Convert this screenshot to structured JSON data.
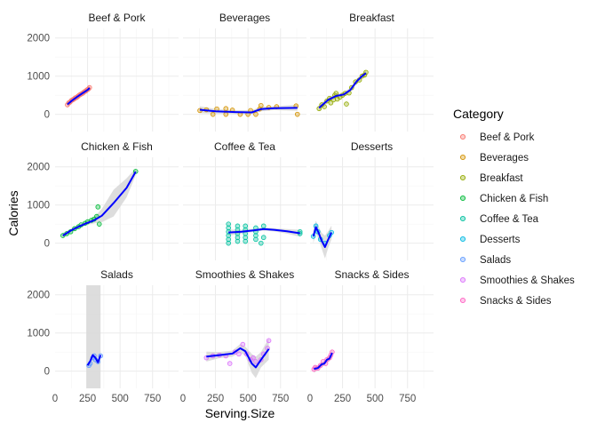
{
  "chart_data": {
    "type": "scatter",
    "xlabel": "Serving.Size",
    "ylabel": "Calories",
    "xlim": [
      0,
      950
    ],
    "ylim": [
      -450,
      2250
    ],
    "x_ticks": [
      0,
      250,
      500,
      750
    ],
    "y_ticks": [
      0,
      1000,
      2000
    ],
    "grid": true,
    "legend_position": "right",
    "legend": {
      "title": "Category",
      "entries": [
        {
          "name": "Beef & Pork",
          "color": "#F8766D"
        },
        {
          "name": "Beverages",
          "color": "#D39200"
        },
        {
          "name": "Breakfast",
          "color": "#93AA00"
        },
        {
          "name": "Chicken & Fish",
          "color": "#00BA38"
        },
        {
          "name": "Coffee & Tea",
          "color": "#00C19F"
        },
        {
          "name": "Desserts",
          "color": "#00B9E3"
        },
        {
          "name": "Salads",
          "color": "#619CFF"
        },
        {
          "name": "Smoothies & Shakes",
          "color": "#DB72FB"
        },
        {
          "name": "Snacks & Sides",
          "color": "#FF61C3"
        }
      ]
    },
    "smooth_color": "#0000FF",
    "ribbon_color": "#D9D9D9",
    "panels": [
      {
        "title": "Beef & Pork",
        "color": "#F8766D",
        "points": [
          [
            95,
            250
          ],
          [
            105,
            300
          ],
          [
            115,
            320
          ],
          [
            125,
            360
          ],
          [
            135,
            380
          ],
          [
            145,
            400
          ],
          [
            155,
            430
          ],
          [
            165,
            440
          ],
          [
            175,
            470
          ],
          [
            185,
            500
          ],
          [
            195,
            520
          ],
          [
            205,
            540
          ],
          [
            215,
            560
          ],
          [
            225,
            590
          ],
          [
            235,
            610
          ],
          [
            245,
            640
          ],
          [
            255,
            660
          ],
          [
            265,
            700
          ]
        ],
        "smooth": [
          [
            95,
            260
          ],
          [
            130,
            360
          ],
          [
            170,
            460
          ],
          [
            210,
            550
          ],
          [
            250,
            640
          ],
          [
            265,
            690
          ]
        ],
        "ribbon": [
          [
            95,
            200,
            320
          ],
          [
            130,
            320,
            400
          ],
          [
            170,
            430,
            490
          ],
          [
            210,
            520,
            580
          ],
          [
            250,
            600,
            680
          ],
          [
            265,
            630,
            750
          ]
        ]
      },
      {
        "title": "Beverages",
        "color": "#D39200",
        "points": [
          [
            130,
            100
          ],
          [
            180,
            120
          ],
          [
            230,
            0
          ],
          [
            260,
            140
          ],
          [
            330,
            150
          ],
          [
            330,
            0
          ],
          [
            380,
            110
          ],
          [
            440,
            0
          ],
          [
            500,
            0
          ],
          [
            520,
            100
          ],
          [
            560,
            0
          ],
          [
            590,
            140
          ],
          [
            600,
            230
          ],
          [
            660,
            180
          ],
          [
            720,
            200
          ],
          [
            870,
            220
          ],
          [
            880,
            0
          ]
        ],
        "smooth": [
          [
            130,
            120
          ],
          [
            250,
            80
          ],
          [
            400,
            60
          ],
          [
            530,
            50
          ],
          [
            600,
            140
          ],
          [
            700,
            160
          ],
          [
            880,
            170
          ]
        ],
        "ribbon": [
          [
            130,
            30,
            210
          ],
          [
            250,
            20,
            140
          ],
          [
            400,
            10,
            110
          ],
          [
            530,
            0,
            110
          ],
          [
            600,
            80,
            200
          ],
          [
            700,
            110,
            210
          ],
          [
            880,
            90,
            250
          ]
        ]
      },
      {
        "title": "Breakfast",
        "color": "#93AA00",
        "points": [
          [
            70,
            150
          ],
          [
            90,
            250
          ],
          [
            110,
            200
          ],
          [
            130,
            350
          ],
          [
            150,
            420
          ],
          [
            160,
            300
          ],
          [
            180,
            380
          ],
          [
            190,
            500
          ],
          [
            200,
            550
          ],
          [
            210,
            400
          ],
          [
            230,
            450
          ],
          [
            250,
            500
          ],
          [
            270,
            550
          ],
          [
            280,
            270
          ],
          [
            300,
            560
          ],
          [
            320,
            700
          ],
          [
            350,
            850
          ],
          [
            380,
            900
          ],
          [
            400,
            1000
          ],
          [
            420,
            1030
          ],
          [
            430,
            1100
          ]
        ],
        "smooth": [
          [
            70,
            170
          ],
          [
            140,
            380
          ],
          [
            200,
            480
          ],
          [
            260,
            520
          ],
          [
            310,
            640
          ],
          [
            360,
            870
          ],
          [
            400,
            1000
          ],
          [
            430,
            1080
          ]
        ],
        "ribbon": [
          [
            70,
            80,
            260
          ],
          [
            140,
            320,
            440
          ],
          [
            200,
            420,
            540
          ],
          [
            260,
            460,
            580
          ],
          [
            310,
            580,
            700
          ],
          [
            360,
            800,
            940
          ],
          [
            400,
            940,
            1060
          ],
          [
            430,
            990,
            1170
          ]
        ]
      },
      {
        "title": "Chicken & Fish",
        "color": "#00BA38",
        "points": [
          [
            60,
            200
          ],
          [
            90,
            250
          ],
          [
            120,
            300
          ],
          [
            150,
            380
          ],
          [
            180,
            430
          ],
          [
            200,
            480
          ],
          [
            230,
            520
          ],
          [
            250,
            560
          ],
          [
            280,
            600
          ],
          [
            300,
            630
          ],
          [
            320,
            700
          ],
          [
            330,
            950
          ],
          [
            340,
            500
          ],
          [
            620,
            1880
          ]
        ],
        "smooth": [
          [
            60,
            200
          ],
          [
            120,
            330
          ],
          [
            180,
            430
          ],
          [
            240,
            520
          ],
          [
            300,
            600
          ],
          [
            360,
            720
          ],
          [
            450,
            1050
          ],
          [
            550,
            1450
          ],
          [
            620,
            1870
          ]
        ],
        "ribbon": [
          [
            60,
            130,
            270
          ],
          [
            120,
            280,
            380
          ],
          [
            180,
            390,
            470
          ],
          [
            240,
            480,
            570
          ],
          [
            300,
            520,
            680
          ],
          [
            360,
            550,
            900
          ],
          [
            450,
            700,
            1400
          ],
          [
            550,
            1200,
            1700
          ],
          [
            620,
            1780,
            1960
          ]
        ]
      },
      {
        "title": "Coffee & Tea",
        "color": "#00C19F",
        "points": [
          [
            350,
            0
          ],
          [
            350,
            100
          ],
          [
            350,
            200
          ],
          [
            350,
            300
          ],
          [
            350,
            400
          ],
          [
            350,
            500
          ],
          [
            420,
            50
          ],
          [
            420,
            150
          ],
          [
            420,
            250
          ],
          [
            420,
            350
          ],
          [
            420,
            450
          ],
          [
            480,
            50
          ],
          [
            480,
            150
          ],
          [
            480,
            250
          ],
          [
            480,
            350
          ],
          [
            480,
            450
          ],
          [
            560,
            100
          ],
          [
            560,
            200
          ],
          [
            560,
            300
          ],
          [
            560,
            400
          ],
          [
            600,
            0
          ],
          [
            620,
            150
          ],
          [
            620,
            450
          ],
          [
            900,
            250
          ],
          [
            900,
            300
          ]
        ],
        "smooth": [
          [
            350,
            280
          ],
          [
            450,
            300
          ],
          [
            550,
            340
          ],
          [
            620,
            370
          ],
          [
            700,
            350
          ],
          [
            800,
            310
          ],
          [
            900,
            260
          ]
        ],
        "ribbon": [
          [
            350,
            200,
            360
          ],
          [
            450,
            250,
            350
          ],
          [
            550,
            300,
            380
          ],
          [
            620,
            330,
            410
          ],
          [
            700,
            310,
            390
          ],
          [
            800,
            250,
            370
          ],
          [
            900,
            170,
            350
          ]
        ]
      },
      {
        "title": "Desserts",
        "color": "#00B9E3",
        "points": [
          [
            25,
            180
          ],
          [
            45,
            450
          ],
          [
            60,
            300
          ],
          [
            80,
            100
          ],
          [
            115,
            0
          ],
          [
            150,
            200
          ],
          [
            165,
            280
          ]
        ],
        "smooth": [
          [
            25,
            180
          ],
          [
            45,
            420
          ],
          [
            65,
            280
          ],
          [
            90,
            60
          ],
          [
            115,
            -100
          ],
          [
            140,
            100
          ],
          [
            165,
            280
          ]
        ],
        "ribbon": [
          [
            25,
            0,
            360
          ],
          [
            45,
            250,
            590
          ],
          [
            65,
            120,
            440
          ],
          [
            90,
            -150,
            270
          ],
          [
            115,
            -400,
            200
          ],
          [
            140,
            -120,
            320
          ],
          [
            165,
            100,
            460
          ]
        ]
      },
      {
        "title": "Salads",
        "color": "#619CFF",
        "points": [
          [
            260,
            150
          ],
          [
            270,
            200
          ],
          [
            290,
            350
          ],
          [
            300,
            400
          ],
          [
            310,
            300
          ],
          [
            330,
            250
          ],
          [
            350,
            400
          ]
        ],
        "smooth": [
          [
            250,
            150
          ],
          [
            270,
            260
          ],
          [
            290,
            420
          ],
          [
            310,
            350
          ],
          [
            330,
            230
          ],
          [
            350,
            420
          ]
        ],
        "ribbon": [
          [
            240,
            -900,
            2500
          ],
          [
            350,
            -900,
            2500
          ]
        ]
      },
      {
        "title": "Smoothies & Shakes",
        "color": "#DB72FB",
        "points": [
          [
            180,
            350
          ],
          [
            230,
            400
          ],
          [
            280,
            420
          ],
          [
            330,
            400
          ],
          [
            360,
            200
          ],
          [
            400,
            500
          ],
          [
            430,
            450
          ],
          [
            460,
            700
          ],
          [
            490,
            450
          ],
          [
            520,
            300
          ],
          [
            540,
            350
          ],
          [
            560,
            250
          ],
          [
            600,
            300
          ],
          [
            620,
            450
          ],
          [
            650,
            600
          ],
          [
            660,
            800
          ]
        ],
        "smooth": [
          [
            180,
            380
          ],
          [
            280,
            420
          ],
          [
            380,
            460
          ],
          [
            440,
            600
          ],
          [
            480,
            520
          ],
          [
            530,
            200
          ],
          [
            560,
            100
          ],
          [
            600,
            300
          ],
          [
            660,
            580
          ]
        ],
        "ribbon": [
          [
            180,
            250,
            510
          ],
          [
            280,
            340,
            500
          ],
          [
            380,
            380,
            540
          ],
          [
            440,
            490,
            710
          ],
          [
            480,
            400,
            640
          ],
          [
            530,
            -50,
            450
          ],
          [
            560,
            -180,
            380
          ],
          [
            600,
            100,
            500
          ],
          [
            660,
            300,
            860
          ]
        ]
      },
      {
        "title": "Snacks & Sides",
        "color": "#FF61C3",
        "points": [
          [
            30,
            50
          ],
          [
            40,
            100
          ],
          [
            60,
            80
          ],
          [
            80,
            150
          ],
          [
            100,
            250
          ],
          [
            120,
            200
          ],
          [
            130,
            300
          ],
          [
            150,
            350
          ],
          [
            160,
            420
          ],
          [
            170,
            500
          ]
        ],
        "smooth": [
          [
            30,
            60
          ],
          [
            60,
            80
          ],
          [
            90,
            180
          ],
          [
            110,
            200
          ],
          [
            130,
            300
          ],
          [
            150,
            330
          ],
          [
            170,
            480
          ]
        ],
        "ribbon": [
          [
            30,
            -40,
            160
          ],
          [
            60,
            20,
            140
          ],
          [
            90,
            120,
            240
          ],
          [
            110,
            140,
            260
          ],
          [
            130,
            230,
            370
          ],
          [
            150,
            260,
            400
          ],
          [
            170,
            380,
            580
          ]
        ]
      }
    ]
  }
}
